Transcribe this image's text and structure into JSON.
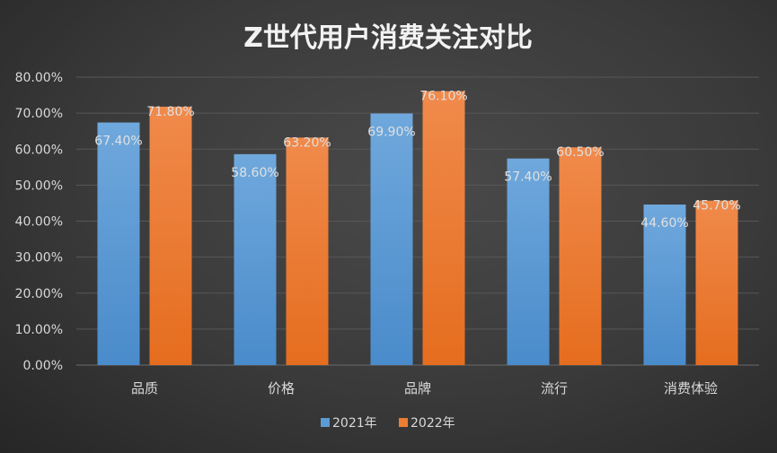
{
  "chart_data": {
    "type": "bar",
    "title": "Z世代用户消费关注对比",
    "categories": [
      "品质",
      "价格",
      "品牌",
      "流行",
      "消费体验"
    ],
    "series": [
      {
        "name": "2021年",
        "values": [
          67.4,
          58.6,
          69.9,
          57.4,
          44.6
        ],
        "color": "#5b9bd5"
      },
      {
        "name": "2022年",
        "values": [
          71.8,
          63.2,
          76.1,
          60.5,
          45.7
        ],
        "color": "#ed7d31"
      }
    ],
    "ylim": [
      0,
      80
    ],
    "yticks": [
      "0.00%",
      "10.00%",
      "20.00%",
      "30.00%",
      "40.00%",
      "50.00%",
      "60.00%",
      "70.00%",
      "80.00%"
    ],
    "data_labels": [
      [
        "67.40%",
        "58.60%",
        "69.90%",
        "57.40%",
        "44.60%"
      ],
      [
        "71.80%",
        "63.20%",
        "76.10%",
        "60.50%",
        "45.70%"
      ]
    ],
    "grid": true,
    "legend": "bottom",
    "xlabel": "",
    "ylabel": ""
  }
}
